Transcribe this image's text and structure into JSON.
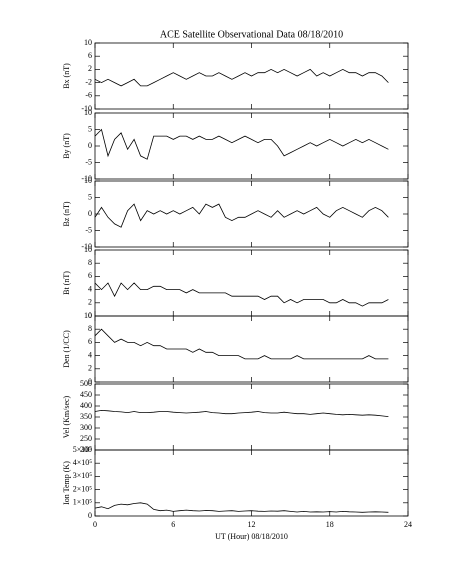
{
  "chart_data": [
    {
      "type": "line",
      "title": "ACE Satellite Observational Data  08/18/2010",
      "ylabel": "Bx (nT)",
      "xlim": [
        0,
        24
      ],
      "xticks": [
        0,
        6,
        12,
        18,
        24
      ],
      "ylim": [
        -10,
        10
      ],
      "yticks": [
        -10,
        -6,
        -2,
        2,
        6,
        10
      ],
      "color": "#000000",
      "x": [
        0,
        0.5,
        1,
        1.5,
        2,
        2.5,
        3,
        3.5,
        4,
        4.5,
        5,
        5.5,
        6,
        6.5,
        7,
        7.5,
        8,
        8.5,
        9,
        9.5,
        10,
        10.5,
        11,
        11.5,
        12,
        12.5,
        13,
        13.5,
        14,
        14.5,
        15,
        15.5,
        16,
        16.5,
        17,
        17.5,
        18,
        18.5,
        19,
        19.5,
        20,
        20.5,
        21,
        21.5,
        22,
        22.5
      ],
      "values": [
        -1,
        -2,
        -1,
        -2,
        -3,
        -2,
        -1,
        -3,
        -3,
        -2,
        -1,
        0,
        1,
        0,
        -1,
        0,
        1,
        0,
        0,
        1,
        0,
        -1,
        0,
        1,
        0,
        1,
        1,
        2,
        1,
        2,
        1,
        0,
        1,
        2,
        0,
        1,
        0,
        1,
        2,
        1,
        1,
        0,
        1,
        1,
        0,
        -2
      ]
    },
    {
      "type": "line",
      "ylabel": "By (nT)",
      "xlim": [
        0,
        24
      ],
      "xticks": [
        0,
        6,
        12,
        18,
        24
      ],
      "ylim": [
        -10,
        10
      ],
      "yticks": [
        -10,
        -5,
        0,
        5,
        10
      ],
      "color": "#000000",
      "x": [
        0,
        0.5,
        1,
        1.5,
        2,
        2.5,
        3,
        3.5,
        4,
        4.5,
        5,
        5.5,
        6,
        6.5,
        7,
        7.5,
        8,
        8.5,
        9,
        9.5,
        10,
        10.5,
        11,
        11.5,
        12,
        12.5,
        13,
        13.5,
        14,
        14.5,
        15,
        15.5,
        16,
        16.5,
        17,
        17.5,
        18,
        18.5,
        19,
        19.5,
        20,
        20.5,
        21,
        21.5,
        22,
        22.5
      ],
      "values": [
        3,
        5,
        -3,
        2,
        4,
        -1,
        2,
        -3,
        -4,
        3,
        3,
        3,
        2,
        3,
        3,
        2,
        3,
        2,
        2,
        3,
        2,
        1,
        2,
        3,
        2,
        1,
        2,
        2,
        0,
        -3,
        -2,
        -1,
        0,
        1,
        0,
        1,
        2,
        1,
        0,
        1,
        2,
        1,
        2,
        1,
        0,
        -1
      ]
    },
    {
      "type": "line",
      "ylabel": "Bz (nT)",
      "xlim": [
        0,
        24
      ],
      "xticks": [
        0,
        6,
        12,
        18,
        24
      ],
      "ylim": [
        -10,
        10
      ],
      "yticks": [
        -10,
        -5,
        0,
        5,
        10
      ],
      "color": "#000000",
      "x": [
        0,
        0.5,
        1,
        1.5,
        2,
        2.5,
        3,
        3.5,
        4,
        4.5,
        5,
        5.5,
        6,
        6.5,
        7,
        7.5,
        8,
        8.5,
        9,
        9.5,
        10,
        10.5,
        11,
        11.5,
        12,
        12.5,
        13,
        13.5,
        14,
        14.5,
        15,
        15.5,
        16,
        16.5,
        17,
        17.5,
        18,
        18.5,
        19,
        19.5,
        20,
        20.5,
        21,
        21.5,
        22,
        22.5
      ],
      "values": [
        -1,
        2,
        -1,
        -3,
        -4,
        1,
        3,
        -2,
        1,
        0,
        1,
        0,
        1,
        0,
        1,
        2,
        0,
        3,
        2,
        3,
        -1,
        -2,
        -1,
        -1,
        0,
        1,
        0,
        -1,
        1,
        -1,
        0,
        1,
        0,
        1,
        2,
        0,
        -1,
        1,
        2,
        1,
        0,
        -1,
        1,
        2,
        1,
        -1
      ]
    },
    {
      "type": "line",
      "ylabel": "Bt (nT)",
      "xlim": [
        0,
        24
      ],
      "xticks": [
        0,
        6,
        12,
        18,
        24
      ],
      "ylim": [
        0,
        10
      ],
      "yticks": [
        0,
        2,
        4,
        6,
        8,
        10
      ],
      "color": "#000000",
      "x": [
        0,
        0.5,
        1,
        1.5,
        2,
        2.5,
        3,
        3.5,
        4,
        4.5,
        5,
        5.5,
        6,
        6.5,
        7,
        7.5,
        8,
        8.5,
        9,
        9.5,
        10,
        10.5,
        11,
        11.5,
        12,
        12.5,
        13,
        13.5,
        14,
        14.5,
        15,
        15.5,
        16,
        16.5,
        17,
        17.5,
        18,
        18.5,
        19,
        19.5,
        20,
        20.5,
        21,
        21.5,
        22,
        22.5
      ],
      "values": [
        5,
        4,
        5,
        3,
        5,
        4,
        5,
        4,
        4,
        4.5,
        4.5,
        4,
        4,
        4,
        3.5,
        4,
        3.5,
        3.5,
        3.5,
        3.5,
        3.5,
        3,
        3,
        3,
        3,
        3,
        2.5,
        3,
        3,
        2,
        2.5,
        2,
        2.5,
        2.5,
        2.5,
        2.5,
        2,
        2,
        2.5,
        2,
        2,
        1.5,
        2,
        2,
        2,
        2.5
      ]
    },
    {
      "type": "line",
      "ylabel": "Den (1/CC)",
      "xlim": [
        0,
        24
      ],
      "xticks": [
        0,
        6,
        12,
        18,
        24
      ],
      "ylim": [
        0,
        10
      ],
      "yticks": [
        0,
        2,
        4,
        6,
        8,
        10
      ],
      "color": "#000000",
      "x": [
        0,
        0.5,
        1,
        1.5,
        2,
        2.5,
        3,
        3.5,
        4,
        4.5,
        5,
        5.5,
        6,
        6.5,
        7,
        7.5,
        8,
        8.5,
        9,
        9.5,
        10,
        10.5,
        11,
        11.5,
        12,
        12.5,
        13,
        13.5,
        14,
        14.5,
        15,
        15.5,
        16,
        16.5,
        17,
        17.5,
        18,
        18.5,
        19,
        19.5,
        20,
        20.5,
        21,
        21.5,
        22,
        22.5
      ],
      "values": [
        7,
        8,
        7,
        6,
        6.5,
        6,
        6,
        5.5,
        6,
        5.5,
        5.5,
        5,
        5,
        5,
        5,
        4.5,
        5,
        4.5,
        4.5,
        4,
        4,
        4,
        4,
        3.5,
        3.5,
        3.5,
        4,
        3.5,
        3.5,
        3.5,
        3.5,
        4,
        3.5,
        3.5,
        3.5,
        3.5,
        3.5,
        3.5,
        3.5,
        3.5,
        3.5,
        3.5,
        4,
        3.5,
        3.5,
        3.5
      ]
    },
    {
      "type": "line",
      "ylabel": "Vel (Km/sec)",
      "xlim": [
        0,
        24
      ],
      "xticks": [
        0,
        6,
        12,
        18,
        24
      ],
      "ylim": [
        200,
        500
      ],
      "yticks": [
        200,
        250,
        300,
        350,
        400,
        450,
        500
      ],
      "color": "#000000",
      "x": [
        0,
        0.5,
        1,
        1.5,
        2,
        2.5,
        3,
        3.5,
        4,
        4.5,
        5,
        5.5,
        6,
        6.5,
        7,
        7.5,
        8,
        8.5,
        9,
        9.5,
        10,
        10.5,
        11,
        11.5,
        12,
        12.5,
        13,
        13.5,
        14,
        14.5,
        15,
        15.5,
        16,
        16.5,
        17,
        17.5,
        18,
        18.5,
        19,
        19.5,
        20,
        20.5,
        21,
        21.5,
        22,
        22.5
      ],
      "values": [
        375,
        380,
        378,
        375,
        373,
        370,
        375,
        370,
        370,
        372,
        375,
        375,
        372,
        370,
        368,
        370,
        372,
        375,
        370,
        368,
        365,
        365,
        368,
        370,
        372,
        375,
        370,
        368,
        368,
        372,
        368,
        365,
        365,
        362,
        365,
        368,
        365,
        362,
        360,
        362,
        360,
        358,
        360,
        358,
        355,
        352
      ]
    },
    {
      "type": "line",
      "ylabel": "Ion Temp (K)",
      "xlabel": "UT (Hour)  08/18/2010",
      "xlim": [
        0,
        24
      ],
      "xticks": [
        0,
        6,
        12,
        18,
        24
      ],
      "ylim": [
        0,
        500000
      ],
      "yticks": [
        0,
        {
          "value": 100000,
          "label": "1×10⁵"
        },
        {
          "value": 200000,
          "label": "2×10⁵"
        },
        {
          "value": 300000,
          "label": "3×10⁵"
        },
        {
          "value": 400000,
          "label": "4×10⁵"
        },
        {
          "value": 500000,
          "label": "5×10⁵"
        }
      ],
      "color": "#000000",
      "x": [
        0,
        0.5,
        1,
        1.5,
        2,
        2.5,
        3,
        3.5,
        4,
        4.5,
        5,
        5.5,
        6,
        6.5,
        7,
        7.5,
        8,
        8.5,
        9,
        9.5,
        10,
        10.5,
        11,
        11.5,
        12,
        12.5,
        13,
        13.5,
        14,
        14.5,
        15,
        15.5,
        16,
        16.5,
        17,
        17.5,
        18,
        18.5,
        19,
        19.5,
        20,
        20.5,
        21,
        21.5,
        22,
        22.5
      ],
      "values": [
        60000,
        70000,
        55000,
        80000,
        90000,
        85000,
        95000,
        100000,
        90000,
        50000,
        40000,
        45000,
        35000,
        40000,
        45000,
        40000,
        38000,
        42000,
        40000,
        35000,
        38000,
        40000,
        35000,
        38000,
        40000,
        36000,
        35000,
        38000,
        36000,
        40000,
        35000,
        30000,
        35000,
        30000,
        32000,
        30000,
        33000,
        30000,
        35000,
        32000,
        30000,
        28000,
        30000,
        32000,
        30000,
        28000
      ]
    }
  ]
}
